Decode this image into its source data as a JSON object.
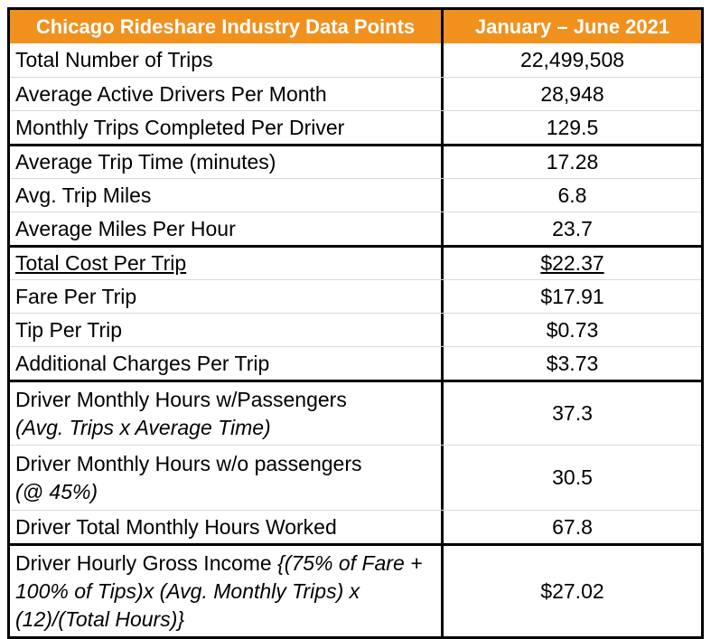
{
  "colors": {
    "header_bg": "#F0911E",
    "header_text": "#FFFFFF",
    "border": "#000000",
    "row_divider": "#D9D9D9"
  },
  "header": {
    "col1": "Chicago Rideshare Industry Data Points",
    "col2": "January – June 2021"
  },
  "table": {
    "rows": [
      {
        "size": "s",
        "thick_top": false,
        "underline": false,
        "value": "22,499,508",
        "lines": [
          [
            {
              "t": "Total Number of Trips",
              "i": false
            }
          ]
        ]
      },
      {
        "size": "s",
        "thick_top": false,
        "underline": false,
        "value": "28,948",
        "lines": [
          [
            {
              "t": "Average Active Drivers Per Month",
              "i": false
            }
          ]
        ]
      },
      {
        "size": "s",
        "thick_top": false,
        "underline": false,
        "value": "129.5",
        "lines": [
          [
            {
              "t": "Monthly Trips Completed Per Driver",
              "i": false
            }
          ]
        ]
      },
      {
        "size": "s",
        "thick_top": true,
        "underline": false,
        "value": "17.28",
        "lines": [
          [
            {
              "t": "Average Trip Time (minutes)",
              "i": false
            }
          ]
        ]
      },
      {
        "size": "s",
        "thick_top": false,
        "underline": false,
        "value": "6.8",
        "lines": [
          [
            {
              "t": "Avg. Trip Miles",
              "i": false
            }
          ]
        ]
      },
      {
        "size": "s",
        "thick_top": false,
        "underline": false,
        "value": "23.7",
        "lines": [
          [
            {
              "t": "Average Miles Per Hour",
              "i": false
            }
          ]
        ]
      },
      {
        "size": "s",
        "thick_top": true,
        "underline": true,
        "value": "$22.37",
        "lines": [
          [
            {
              "t": "Total Cost Per Trip",
              "i": false
            }
          ]
        ]
      },
      {
        "size": "s",
        "thick_top": false,
        "underline": false,
        "value": "$17.91",
        "lines": [
          [
            {
              "t": "Fare Per Trip",
              "i": false
            }
          ]
        ]
      },
      {
        "size": "s",
        "thick_top": false,
        "underline": false,
        "value": "$0.73",
        "lines": [
          [
            {
              "t": "Tip Per Trip",
              "i": false
            }
          ]
        ]
      },
      {
        "size": "s",
        "thick_top": false,
        "underline": false,
        "value": "$3.73",
        "lines": [
          [
            {
              "t": "Additional Charges Per Trip",
              "i": false
            }
          ]
        ]
      },
      {
        "size": "m",
        "thick_top": true,
        "underline": false,
        "value": "37.3",
        "lines": [
          [
            {
              "t": "Driver Monthly Hours w/Passengers",
              "i": false
            }
          ],
          [
            {
              "t": "(Avg. Trips x Average Time)",
              "i": true
            }
          ]
        ]
      },
      {
        "size": "m",
        "thick_top": false,
        "underline": false,
        "value": "30.5",
        "lines": [
          [
            {
              "t": "Driver Monthly Hours w/o passengers",
              "i": false
            }
          ],
          [
            {
              "t": "(@ 45%)",
              "i": true
            }
          ]
        ]
      },
      {
        "size": "s",
        "thick_top": false,
        "underline": false,
        "value": "67.8",
        "lines": [
          [
            {
              "t": "Driver Total Monthly Hours Worked",
              "i": false
            }
          ]
        ]
      },
      {
        "size": "l",
        "thick_top": true,
        "underline": false,
        "value": "$27.02",
        "lines": [
          [
            {
              "t": "Driver Hourly Gross Income ",
              "i": false
            },
            {
              "t": "{(75% of Fare + 100% of Tips)x (Avg. Monthly Trips) x (12)/(Total Hours)}",
              "i": true
            }
          ]
        ]
      }
    ]
  },
  "chart_data": {
    "type": "table",
    "title": "Chicago Rideshare Industry Data Points",
    "columns": [
      "Chicago Rideshare Industry Data Points",
      "January – June 2021"
    ],
    "rows": [
      [
        "Total Number of Trips",
        "22,499,508"
      ],
      [
        "Average Active Drivers Per Month",
        "28,948"
      ],
      [
        "Monthly Trips Completed Per Driver",
        "129.5"
      ],
      [
        "Average Trip Time (minutes)",
        "17.28"
      ],
      [
        "Avg. Trip Miles",
        "6.8"
      ],
      [
        "Average Miles Per Hour",
        "23.7"
      ],
      [
        "Total Cost Per Trip",
        "$22.37"
      ],
      [
        "Fare Per Trip",
        "$17.91"
      ],
      [
        "Tip Per Trip",
        "$0.73"
      ],
      [
        "Additional Charges Per Trip",
        "$3.73"
      ],
      [
        "Driver Monthly Hours w/Passengers (Avg. Trips x Average Time)",
        "37.3"
      ],
      [
        "Driver Monthly Hours w/o passengers (@ 45%)",
        "30.5"
      ],
      [
        "Driver Total Monthly Hours Worked",
        "67.8"
      ],
      [
        "Driver Hourly Gross Income {(75% of Fare + 100% of Tips)x (Avg. Monthly Trips) x (12)/(Total Hours)}",
        "$27.02"
      ]
    ]
  }
}
